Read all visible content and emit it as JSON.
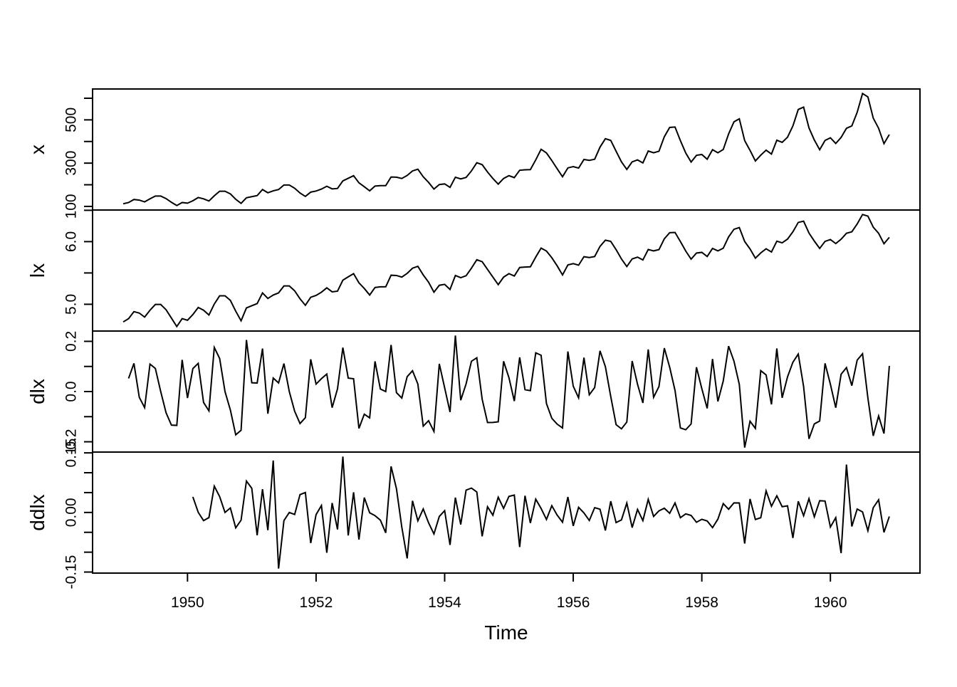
{
  "figure": {
    "background_color": "#ffffff",
    "line_color": "#000000",
    "xlabel": "Time"
  },
  "chart_data": {
    "type": "line",
    "title": "",
    "xlabel": "Time",
    "ylabel": "",
    "grid": false,
    "legend": "none",
    "description": "Four stacked time-series panels of monthly airline passengers 1949-1960: raw series x, lx = log(x), dlx = diff(log(x)), ddlx = diff(diff(log(x)), 12)",
    "x_start": 1949,
    "frequency": 12,
    "x_axis": {
      "label": "Time",
      "range": [
        1949.0,
        1960.917
      ],
      "ticks": [
        {
          "v": 1950,
          "label": "1950"
        },
        {
          "v": 1952,
          "label": "1952"
        },
        {
          "v": 1954,
          "label": "1954"
        },
        {
          "v": 1956,
          "label": "1956"
        },
        {
          "v": 1958,
          "label": "1958"
        },
        {
          "v": 1960,
          "label": "1960"
        }
      ]
    },
    "x_values": [
      112,
      118,
      132,
      129,
      121,
      135,
      148,
      148,
      136,
      119,
      104,
      118,
      115,
      126,
      141,
      135,
      125,
      149,
      170,
      170,
      158,
      133,
      114,
      140,
      145,
      150,
      178,
      163,
      172,
      178,
      199,
      199,
      184,
      162,
      146,
      166,
      171,
      180,
      193,
      181,
      183,
      218,
      230,
      242,
      209,
      191,
      172,
      194,
      196,
      196,
      236,
      235,
      229,
      243,
      264,
      272,
      237,
      211,
      180,
      201,
      204,
      188,
      235,
      227,
      234,
      264,
      302,
      293,
      259,
      229,
      203,
      229,
      242,
      233,
      267,
      269,
      270,
      315,
      364,
      347,
      312,
      274,
      237,
      278,
      284,
      277,
      317,
      313,
      318,
      374,
      413,
      405,
      355,
      306,
      271,
      306,
      315,
      301,
      356,
      348,
      355,
      422,
      465,
      467,
      404,
      347,
      305,
      336,
      340,
      318,
      362,
      348,
      363,
      435,
      491,
      505,
      404,
      359,
      310,
      337,
      360,
      342,
      406,
      396,
      420,
      472,
      548,
      559,
      463,
      407,
      362,
      405,
      417,
      391,
      419,
      461,
      472,
      535,
      622,
      606,
      508,
      461,
      390,
      432
    ],
    "panels": [
      {
        "key": "x",
        "label": "x",
        "transform": "identity",
        "y_ticks": [
          {
            "v": 100,
            "label": "100"
          },
          {
            "v": 200,
            "label": ""
          },
          {
            "v": 300,
            "label": "300"
          },
          {
            "v": 400,
            "label": ""
          },
          {
            "v": 500,
            "label": "500"
          },
          {
            "v": 600,
            "label": ""
          }
        ]
      },
      {
        "key": "lx",
        "label": "lx",
        "transform": "log",
        "y_ticks": [
          {
            "v": 5.0,
            "label": "5.0"
          },
          {
            "v": 5.5,
            "label": ""
          },
          {
            "v": 6.0,
            "label": "6.0"
          },
          {
            "v": 6.5,
            "label": ""
          }
        ]
      },
      {
        "key": "dlx",
        "label": "dlx",
        "transform": "diff(log)",
        "y_ticks": [
          {
            "v": -0.2,
            "label": "-0.2"
          },
          {
            "v": -0.1,
            "label": ""
          },
          {
            "v": 0.0,
            "label": "0.0"
          },
          {
            "v": 0.1,
            "label": ""
          },
          {
            "v": 0.2,
            "label": "0.2"
          }
        ]
      },
      {
        "key": "ddlx",
        "label": "ddlx",
        "transform": "diff(diff(log), 12)",
        "y_ticks": [
          {
            "v": -0.15,
            "label": "-0.15"
          },
          {
            "v": -0.1,
            "label": ""
          },
          {
            "v": -0.05,
            "label": ""
          },
          {
            "v": 0.0,
            "label": "0.00"
          },
          {
            "v": 0.05,
            "label": ""
          },
          {
            "v": 0.1,
            "label": ""
          },
          {
            "v": 0.15,
            "label": "0.15"
          }
        ]
      }
    ]
  }
}
